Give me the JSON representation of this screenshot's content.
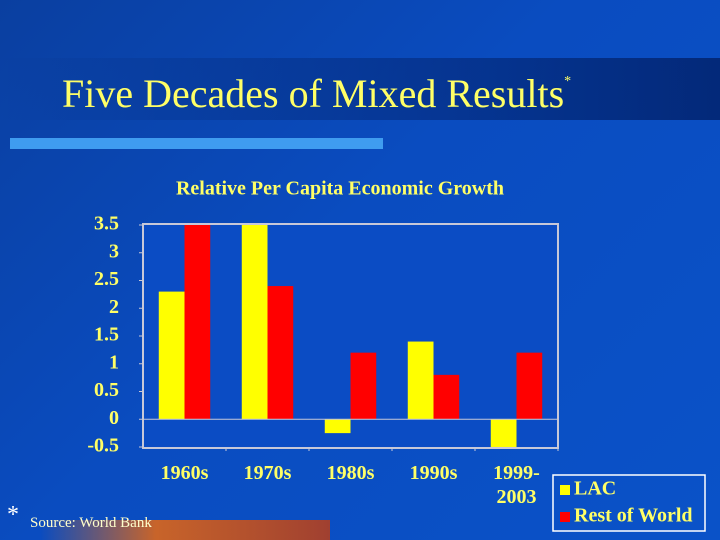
{
  "slide": {
    "title": "Five Decades of Mixed Results",
    "title_note": "*",
    "footnote_marker": "*",
    "footnote": "Source: World Bank"
  },
  "chart_data": {
    "type": "bar",
    "title": "Relative Per Capita Economic Growth",
    "categories": [
      "1960s",
      "1970s",
      "1980s",
      "1990s",
      "1999-2003"
    ],
    "series": [
      {
        "name": "LAC",
        "color": "#ffff00",
        "values": [
          2.3,
          3.5,
          -0.25,
          1.4,
          -0.5
        ]
      },
      {
        "name": "Rest of World",
        "color": "#ff0000",
        "values": [
          3.5,
          2.4,
          1.2,
          0.8,
          1.2
        ]
      }
    ],
    "ylim": [
      -0.5,
      3.5
    ],
    "yticks": [
      -0.5,
      0,
      0.5,
      1,
      1.5,
      2,
      2.5,
      3,
      3.5
    ],
    "legend": "right"
  }
}
